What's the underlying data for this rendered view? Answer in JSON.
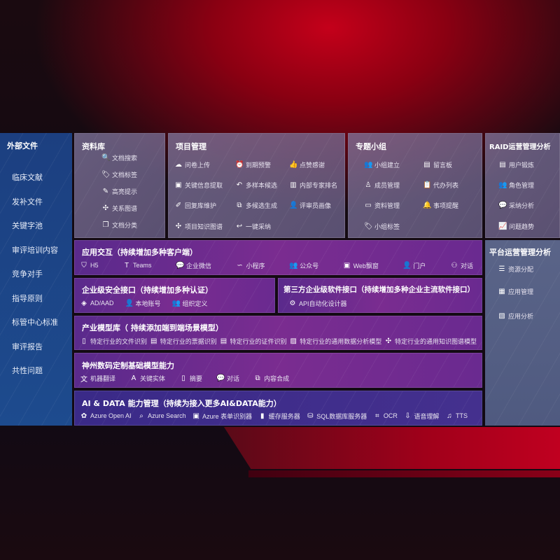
{
  "external": {
    "title": "外部文件",
    "items": [
      "临床文献",
      "发补文件",
      "关键字池",
      "审评培训内容",
      "竞争对手",
      "指导原则",
      "标管中心标准",
      "审评报告",
      "共性问题"
    ]
  },
  "library": {
    "title": "资料库",
    "items": [
      {
        "label": "文档搜索",
        "icon": "doc-search-icon"
      },
      {
        "label": "文档标签",
        "icon": "tag-icon"
      },
      {
        "label": "高亮提示",
        "icon": "pen-icon"
      },
      {
        "label": "关系图谱",
        "icon": "graph-icon"
      },
      {
        "label": "文档分类",
        "icon": "doc-copy-icon"
      }
    ]
  },
  "project": {
    "title": "项目管理",
    "items": [
      {
        "label": "问卷上传",
        "icon": "cloud-upload-icon"
      },
      {
        "label": "到期预警",
        "icon": "alarm-icon"
      },
      {
        "label": "点赞感谢",
        "icon": "thumbs-up-icon"
      },
      {
        "label": "关键信息提取",
        "icon": "window-icon"
      },
      {
        "label": "多样本候选",
        "icon": "reply-all-icon"
      },
      {
        "label": "内部专家排名",
        "icon": "ranking-icon"
      },
      {
        "label": "回复库维护",
        "icon": "edit-icon"
      },
      {
        "label": "多候选生成",
        "icon": "puzzle-icon"
      },
      {
        "label": "评审员画像",
        "icon": "user-icon"
      },
      {
        "label": "项目知识图谱",
        "icon": "graph-icon"
      },
      {
        "label": "一键采纳",
        "icon": "reply-icon"
      }
    ]
  },
  "group": {
    "title": "专题小组",
    "items": [
      {
        "label": "小组建立",
        "icon": "users-icon"
      },
      {
        "label": "留言板",
        "icon": "bbs-icon"
      },
      {
        "label": "成员管理",
        "icon": "user-add-icon"
      },
      {
        "label": "代办列表",
        "icon": "clipboard-icon"
      },
      {
        "label": "资料管理",
        "icon": "folder-icon"
      },
      {
        "label": "事项提醒",
        "icon": "bell-icon"
      },
      {
        "label": "小组标签",
        "icon": "tag-icon"
      }
    ]
  },
  "raid": {
    "title": "RAID运营管理分析",
    "items": [
      {
        "label": "用户锻炼",
        "icon": "id-card-icon"
      },
      {
        "label": "角色管理",
        "icon": "users-icon"
      },
      {
        "label": "采纳分析",
        "icon": "qa-icon"
      },
      {
        "label": "问题趋势",
        "icon": "trend-icon"
      }
    ]
  },
  "platform": {
    "title": "平台运营管理分析",
    "items": [
      {
        "label": "资源分配",
        "icon": "checklist-icon"
      },
      {
        "label": "应用管理",
        "icon": "apps-icon"
      },
      {
        "label": "应用分析",
        "icon": "analysis-icon"
      }
    ]
  },
  "app": {
    "title": "应用交互（持续增加多种客户端）",
    "items": [
      {
        "label": "H5",
        "icon": "html5-icon"
      },
      {
        "label": "Teams",
        "icon": "teams-icon"
      },
      {
        "label": "企业微信",
        "icon": "wechat-icon"
      },
      {
        "label": "小程序",
        "icon": "miniprogram-icon"
      },
      {
        "label": "公众号",
        "icon": "users-icon"
      },
      {
        "label": "Web飘窗",
        "icon": "window-icon"
      },
      {
        "label": "门户",
        "icon": "portal-icon"
      },
      {
        "label": "对话",
        "icon": "chat-users-icon"
      }
    ]
  },
  "security": {
    "title": "企业级安全接口（持续增加多种认证）",
    "items": [
      {
        "label": "AD/AAD",
        "icon": "diamond-icon"
      },
      {
        "label": "本地账号",
        "icon": "user-lock-icon"
      },
      {
        "label": "组织定义",
        "icon": "org-icon"
      }
    ]
  },
  "thirdparty": {
    "title": "第三方企业级软件接口（持续增加多种企业主流软件接口）",
    "items": [
      {
        "label": "API自动化设计器",
        "icon": "gear-icon"
      }
    ]
  },
  "industry": {
    "title": "产业模型库（ 持续添加端到端场景模型）",
    "items": [
      {
        "label": "特定行业的文件识别",
        "icon": "file-icon"
      },
      {
        "label": "特定行业的票据识别",
        "icon": "receipt-icon"
      },
      {
        "label": "特定行业的证件识别",
        "icon": "id-card-icon"
      },
      {
        "label": "特定行业的通用数据分析模型",
        "icon": "chart-icon"
      },
      {
        "label": "特定行业的通用知识图谱模型",
        "icon": "graph-icon"
      }
    ]
  },
  "base": {
    "title": "神州数码定制基础模型能力",
    "items": [
      {
        "label": "机器翻译",
        "icon": "translate-icon"
      },
      {
        "label": "关键实体",
        "icon": "entity-icon"
      },
      {
        "label": "摘要",
        "icon": "doc-icon"
      },
      {
        "label": "对话",
        "icon": "chat-icon"
      },
      {
        "label": "内容合成",
        "icon": "puzzle-icon"
      }
    ]
  },
  "ai": {
    "title": "AI & DATA 能力管理（持续为接入更多AI&DATA能力）",
    "items": [
      {
        "label": "Azure Open AI",
        "icon": "openai-icon"
      },
      {
        "label": "Azure Search",
        "icon": "search-icon"
      },
      {
        "label": "Azure 表单识别器",
        "icon": "form-icon"
      },
      {
        "label": "缓存服务器",
        "icon": "cache-icon"
      },
      {
        "label": "SQL数据库服务器",
        "icon": "database-icon"
      },
      {
        "label": "OCR",
        "icon": "ocr-icon"
      },
      {
        "label": "语音理解",
        "icon": "speech-icon"
      },
      {
        "label": "TTS",
        "icon": "tts-icon"
      }
    ]
  }
}
